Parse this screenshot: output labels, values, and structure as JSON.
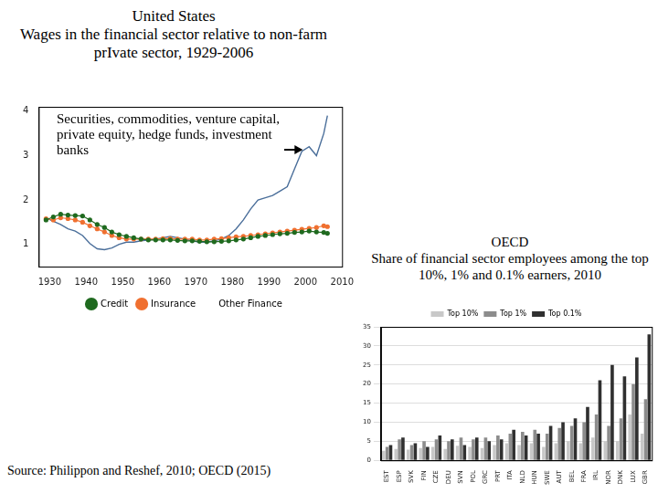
{
  "chart_data": [
    {
      "type": "line",
      "title": "United States",
      "subtitle": "Wages in the financial sector relative to non-farm prIvate sector, 1929-2006",
      "annotations": [
        {
          "text": "Securities, commodities, venture capital, private equity, hedge funds, investment banks"
        }
      ],
      "x": [
        1929,
        1931,
        1933,
        1935,
        1937,
        1939,
        1941,
        1943,
        1945,
        1947,
        1949,
        1951,
        1953,
        1955,
        1957,
        1959,
        1961,
        1963,
        1965,
        1967,
        1969,
        1971,
        1973,
        1975,
        1977,
        1979,
        1981,
        1983,
        1985,
        1987,
        1989,
        1991,
        1993,
        1995,
        1997,
        1999,
        2001,
        2003,
        2005,
        2006
      ],
      "series": [
        {
          "name": "Credit",
          "color": "#1f6a1f",
          "marker": "circle",
          "line_style": "solid",
          "values": [
            1.55,
            1.62,
            1.68,
            1.66,
            1.65,
            1.64,
            1.55,
            1.45,
            1.38,
            1.28,
            1.22,
            1.18,
            1.15,
            1.12,
            1.1,
            1.1,
            1.1,
            1.1,
            1.09,
            1.08,
            1.08,
            1.07,
            1.06,
            1.06,
            1.07,
            1.08,
            1.1,
            1.12,
            1.15,
            1.18,
            1.2,
            1.22,
            1.24,
            1.25,
            1.27,
            1.28,
            1.3,
            1.28,
            1.27,
            1.25
          ]
        },
        {
          "name": "Insurance",
          "color": "#f07030",
          "marker": "circle",
          "line_style": "solid",
          "values": [
            1.58,
            1.55,
            1.6,
            1.58,
            1.55,
            1.5,
            1.42,
            1.35,
            1.28,
            1.2,
            1.15,
            1.12,
            1.12,
            1.12,
            1.12,
            1.12,
            1.13,
            1.13,
            1.12,
            1.12,
            1.12,
            1.1,
            1.1,
            1.12,
            1.13,
            1.15,
            1.17,
            1.18,
            1.2,
            1.22,
            1.24,
            1.26,
            1.28,
            1.3,
            1.32,
            1.34,
            1.36,
            1.38,
            1.42,
            1.4
          ]
        },
        {
          "name": "Other Finance",
          "color": "#4a6e9a",
          "marker": "none",
          "line_style": "solid",
          "values": [
            1.6,
            1.52,
            1.45,
            1.35,
            1.3,
            1.2,
            1.02,
            0.9,
            0.88,
            0.92,
            1.0,
            1.05,
            1.05,
            1.08,
            1.1,
            1.12,
            1.15,
            1.18,
            1.15,
            1.12,
            1.08,
            1.05,
            1.05,
            1.08,
            1.12,
            1.2,
            1.35,
            1.55,
            1.8,
            2.0,
            2.05,
            2.1,
            2.2,
            2.3,
            2.7,
            3.1,
            3.2,
            3.0,
            3.5,
            3.9
          ]
        }
      ],
      "xlim": [
        1927,
        2010
      ],
      "xticks": [
        1930,
        1940,
        1950,
        1960,
        1970,
        1980,
        1990,
        2000,
        2010
      ],
      "ylim": [
        0.5,
        4.1
      ],
      "yticks": [
        1,
        2,
        3,
        4
      ],
      "grid": false,
      "legend": "bottom"
    },
    {
      "type": "bar",
      "title": "OECD",
      "subtitle": "Share of financial sector employees among the top 10%, 1% and 0.1% earners, 2010",
      "categories": [
        "EST",
        "ESP",
        "SVK",
        "FIN",
        "CZE",
        "DEU",
        "SVN",
        "POL",
        "GRC",
        "PRT",
        "ITA",
        "NLD",
        "HUN",
        "SWE",
        "AUT",
        "BEL",
        "FRA",
        "IRL",
        "NOR",
        "DNK",
        "LUX",
        "GBR"
      ],
      "series": [
        {
          "name": "Top 10%",
          "color": "#c8c8c8",
          "values": [
            2.5,
            3.0,
            2.8,
            3.2,
            3.5,
            3.0,
            3.8,
            3.5,
            3.2,
            4.0,
            4.5,
            4.0,
            4.5,
            3.5,
            4.5,
            5.0,
            4.5,
            6.0,
            5.0,
            5.0,
            12.0,
            7.0
          ]
        },
        {
          "name": "Top 1%",
          "color": "#8c8c8c",
          "values": [
            3.5,
            5.5,
            4.0,
            5.0,
            5.5,
            5.0,
            6.0,
            5.5,
            6.0,
            6.5,
            7.0,
            7.5,
            8.0,
            7.0,
            8.5,
            9.0,
            10.0,
            12.0,
            9.0,
            11.0,
            20.0,
            16.0
          ]
        },
        {
          "name": "Top 0.1%",
          "color": "#303030",
          "values": [
            4.0,
            6.0,
            4.5,
            3.5,
            6.5,
            5.5,
            4.0,
            6.0,
            5.0,
            5.5,
            8.0,
            6.5,
            7.0,
            9.0,
            10.0,
            11.0,
            14.0,
            21.0,
            25.0,
            22.0,
            27.0,
            33.0
          ]
        }
      ],
      "ylim": [
        0,
        35
      ],
      "yticks": [
        0,
        5,
        10,
        15,
        20,
        25,
        30,
        35
      ],
      "grid": true,
      "legend": "top"
    }
  ],
  "source": "Source: Philippon and Reshef, 2010; OECD (2015)"
}
